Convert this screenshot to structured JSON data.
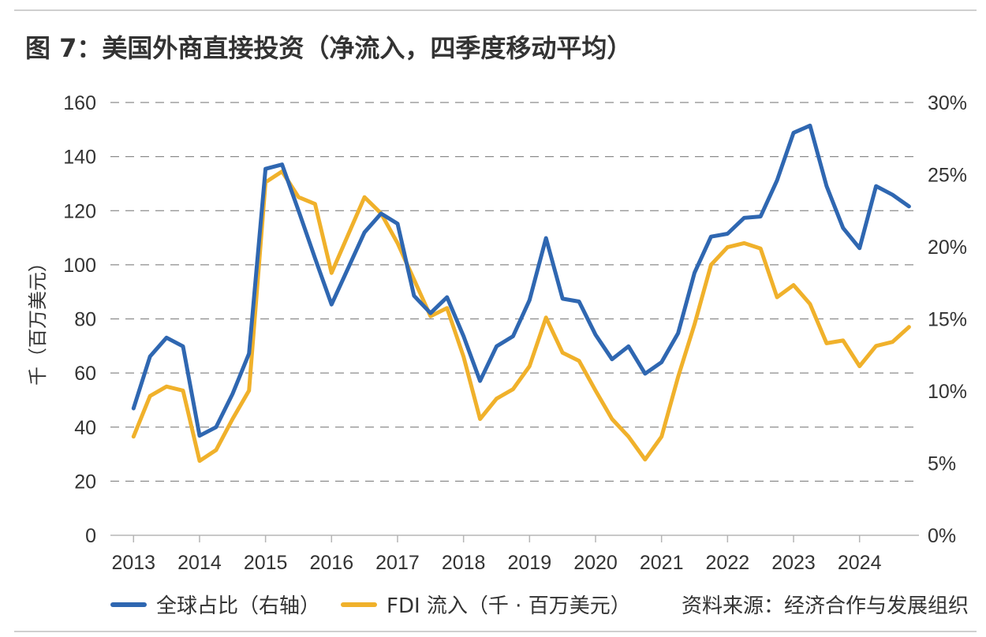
{
  "title": "图 7：美国外商直接投资（净流入，四季度移动平均）",
  "source": "资料来源：经济合作与发展组织",
  "colors": {
    "global_share": "#2f67b1",
    "fdi": "#f0b12b",
    "grid": "#8c8c8c",
    "text": "#333333"
  },
  "chart_data": {
    "type": "line",
    "title": "图 7：美国外商直接投资（净流入，四季度移动平均）",
    "xlabel": "",
    "ylabel": "千（百万美元）",
    "ylim": [
      0,
      160
    ],
    "y2lim": [
      0,
      30
    ],
    "yticks": [
      "0",
      "20",
      "40",
      "60",
      "80",
      "100",
      "120",
      "140",
      "160"
    ],
    "y2ticks": [
      "0%",
      "5%",
      "10%",
      "15%",
      "20%",
      "25%",
      "30%"
    ],
    "xticks": [
      "2013",
      "2014",
      "2015",
      "2016",
      "2017",
      "2018",
      "2019",
      "2020",
      "2021",
      "2022",
      "2023",
      "2024"
    ],
    "grid": "horizontal-dashed",
    "legend_position": "bottom",
    "x": [
      2013.0,
      2013.25,
      2013.5,
      2013.75,
      2014.0,
      2014.25,
      2014.5,
      2014.75,
      2015.0,
      2015.25,
      2015.5,
      2015.75,
      2016.0,
      2016.25,
      2016.5,
      2016.75,
      2017.0,
      2017.25,
      2017.5,
      2017.75,
      2018.0,
      2018.25,
      2018.5,
      2018.75,
      2019.0,
      2019.25,
      2019.5,
      2019.75,
      2020.0,
      2020.25,
      2020.5,
      2020.75,
      2021.0,
      2021.25,
      2021.5,
      2021.75,
      2022.0,
      2022.25,
      2022.5,
      2022.75,
      2023.0,
      2023.25,
      2023.5,
      2023.75,
      2024.0,
      2024.25,
      2024.5,
      2024.75
    ],
    "series": [
      {
        "name": "全球占比（右轴）",
        "axis": "right",
        "unit": "%",
        "values": [
          8.8,
          12.4,
          13.7,
          13.1,
          6.9,
          7.5,
          9.8,
          12.6,
          25.4,
          25.7,
          22.5,
          19.2,
          16.0,
          18.5,
          21.0,
          22.3,
          21.6,
          16.6,
          15.4,
          16.5,
          13.8,
          10.7,
          13.1,
          13.8,
          16.3,
          20.6,
          16.4,
          16.2,
          13.9,
          12.2,
          13.1,
          11.2,
          12.0,
          14.0,
          18.2,
          20.7,
          20.9,
          22.0,
          22.1,
          24.6,
          27.9,
          28.4,
          24.2,
          21.3,
          19.9,
          24.2,
          23.6,
          22.8
        ]
      },
      {
        "name": "FDI 流入（千 · 百万美元）",
        "axis": "left",
        "unit": "",
        "values": [
          36.5,
          51.5,
          55.0,
          53.5,
          27.5,
          31.5,
          43.0,
          53.5,
          130.5,
          134.5,
          125.0,
          122.5,
          97.0,
          111.0,
          125.0,
          119.0,
          108.0,
          94.5,
          81.0,
          84.0,
          66.0,
          43.0,
          50.5,
          54.0,
          62.5,
          80.5,
          67.5,
          64.5,
          53.5,
          43.0,
          36.5,
          28.0,
          36.5,
          58.5,
          78.0,
          100.0,
          106.5,
          108.0,
          106.0,
          88.0,
          92.5,
          85.5,
          71.0,
          72.0,
          62.5,
          70.0,
          71.5,
          77.0
        ]
      }
    ]
  }
}
